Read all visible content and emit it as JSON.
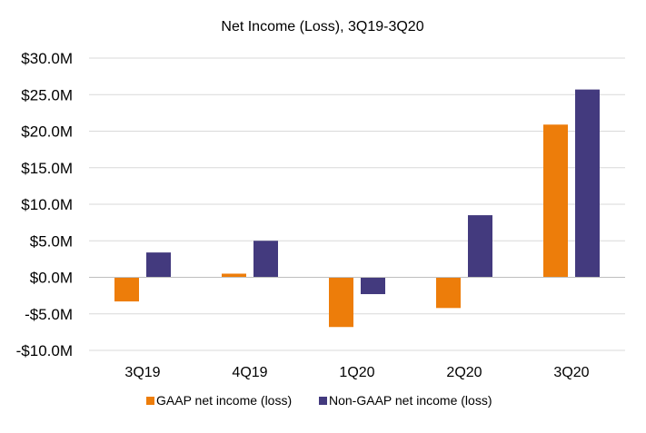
{
  "chart_data": {
    "type": "bar",
    "title": "Net Income (Loss), 3Q19-3Q20",
    "xlabel": "",
    "ylabel": "",
    "categories": [
      "3Q19",
      "4Q19",
      "1Q20",
      "2Q20",
      "3Q20"
    ],
    "series": [
      {
        "name": "GAAP net income (loss)",
        "values": [
          -3.3,
          0.5,
          -6.8,
          -4.2,
          20.9
        ],
        "color": "#ED7D0A"
      },
      {
        "name": "Non-GAAP net income (loss)",
        "values": [
          3.4,
          5.0,
          -2.3,
          8.5,
          25.7
        ],
        "color": "#433A7E"
      }
    ],
    "ylim": [
      -10,
      30
    ],
    "yticks": [
      {
        "value": 30,
        "label": "$30.0M"
      },
      {
        "value": 25,
        "label": "$25.0M"
      },
      {
        "value": 20,
        "label": "$20.0M"
      },
      {
        "value": 15,
        "label": "$15.0M"
      },
      {
        "value": 10,
        "label": "$10.0M"
      },
      {
        "value": 5,
        "label": "$5.0M"
      },
      {
        "value": 0,
        "label": "$0.0M"
      },
      {
        "value": -5,
        "label": "-$5.0M"
      },
      {
        "value": -10,
        "label": "-$10.0M"
      }
    ],
    "grid": true,
    "legend": "bottom"
  }
}
